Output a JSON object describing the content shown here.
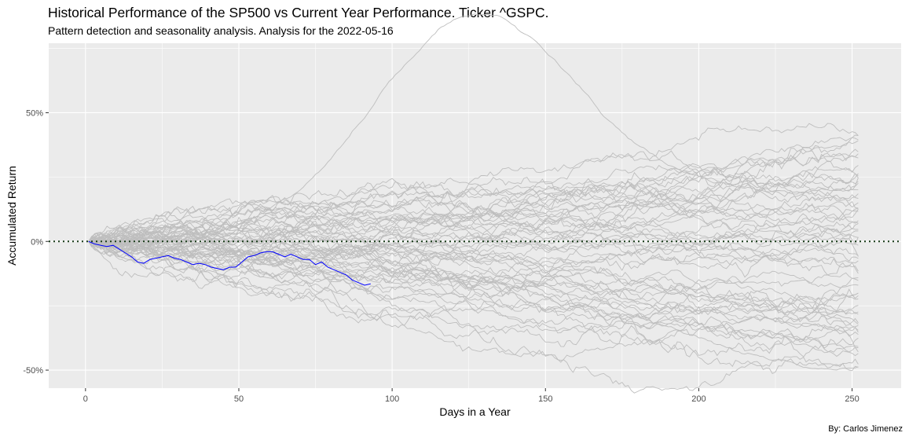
{
  "title": "Historical Performance of the SP500 vs Current Year Performance. Ticker ^GSPC.",
  "subtitle": "Pattern detection and seasonality analysis. Analysis for the 2022-05-16",
  "caption": "By: Carlos Jimenez",
  "colors": {
    "panel": "#ebebeb",
    "grid": "#ffffff",
    "history": "#bebebe",
    "current": "#0000ff",
    "zero_line": "#1a3d1a"
  },
  "chart_data": {
    "type": "line",
    "xlabel": "Days in a Year",
    "ylabel": "Accumulated Return",
    "xlim": [
      -12,
      266
    ],
    "ylim": [
      -0.57,
      0.77
    ],
    "x_ticks": [
      0,
      50,
      100,
      150,
      200,
      250
    ],
    "x_tick_labels": [
      "0",
      "50",
      "100",
      "150",
      "200",
      "250"
    ],
    "y_ticks": [
      -0.5,
      0,
      0.5
    ],
    "y_tick_labels": [
      "-50%",
      "0%",
      "50%"
    ],
    "grid": true,
    "legend": "none",
    "reference_line": {
      "y": 0,
      "style": "dotted"
    },
    "historical_series": {
      "count": 60,
      "x_start": 1,
      "x_end": 252,
      "endpoint_range": [
        -0.51,
        0.44
      ],
      "notable_peak": {
        "x": 128,
        "y": 0.78
      },
      "notable_trough": {
        "x": 235,
        "y": -0.5
      }
    },
    "current_series": {
      "x": [
        1,
        3,
        5,
        7,
        9,
        11,
        13,
        15,
        17,
        19,
        21,
        23,
        25,
        27,
        29,
        31,
        33,
        35,
        37,
        39,
        41,
        43,
        45,
        47,
        49,
        51,
        53,
        55,
        57,
        59,
        61,
        63,
        65,
        67,
        69,
        71,
        73,
        75,
        77,
        79,
        81,
        83,
        85,
        87,
        89,
        91,
        93
      ],
      "y": [
        0.0,
        -0.01,
        -0.015,
        -0.02,
        -0.015,
        -0.03,
        -0.045,
        -0.06,
        -0.08,
        -0.085,
        -0.07,
        -0.065,
        -0.06,
        -0.055,
        -0.065,
        -0.07,
        -0.08,
        -0.09,
        -0.085,
        -0.09,
        -0.1,
        -0.105,
        -0.11,
        -0.1,
        -0.1,
        -0.08,
        -0.06,
        -0.055,
        -0.045,
        -0.04,
        -0.04,
        -0.05,
        -0.06,
        -0.05,
        -0.06,
        -0.07,
        -0.07,
        -0.09,
        -0.08,
        -0.1,
        -0.11,
        -0.12,
        -0.13,
        -0.15,
        -0.16,
        -0.17,
        -0.165
      ]
    }
  }
}
